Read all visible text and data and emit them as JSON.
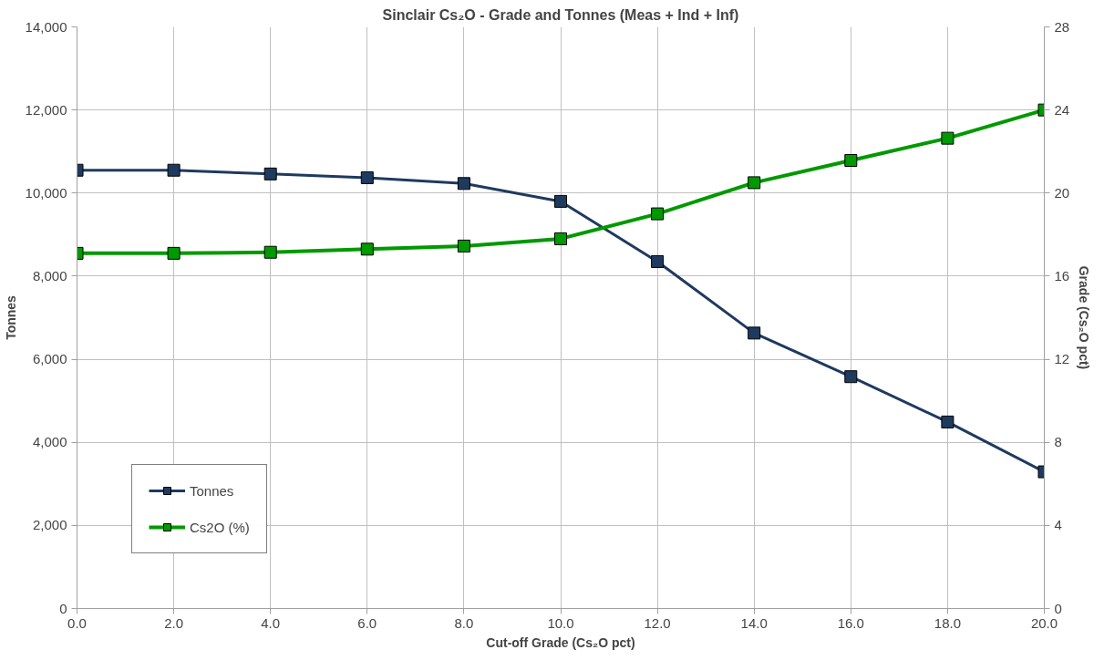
{
  "chart_data": {
    "type": "line",
    "title": "Sinclair Cs₂O - Grade and Tonnes (Meas + Ind + Inf)",
    "xlabel": "Cut-off Grade (Cs₂O pct)",
    "ylabel": "Tonnes",
    "y2label": "Grade (Cs₂O pct)",
    "x": [
      0,
      2,
      4,
      6,
      8,
      10,
      12,
      14,
      16,
      18,
      20
    ],
    "xlim": [
      0,
      20
    ],
    "xticks": [
      {
        "value": 0,
        "label": "0.0"
      },
      {
        "value": 2,
        "label": "2.0"
      },
      {
        "value": 4,
        "label": "4.0"
      },
      {
        "value": 6,
        "label": "6.0"
      },
      {
        "value": 8,
        "label": "8.0"
      },
      {
        "value": 10,
        "label": "10.0"
      },
      {
        "value": 12,
        "label": "12.0"
      },
      {
        "value": 14,
        "label": "14.0"
      },
      {
        "value": 16,
        "label": "16.0"
      },
      {
        "value": 18,
        "label": "18.0"
      },
      {
        "value": 20,
        "label": "20.0"
      }
    ],
    "ylim": [
      0,
      14000
    ],
    "yticks": [
      0,
      {
        "value": 2000,
        "label": "2,000"
      },
      {
        "value": 4000,
        "label": "4,000"
      },
      {
        "value": 6000,
        "label": "6,000"
      },
      {
        "value": 8000,
        "label": "8,000"
      },
      {
        "value": 10000,
        "label": "10,000"
      },
      {
        "value": 12000,
        "label": "12,000"
      },
      {
        "value": 14000,
        "label": "14,000"
      }
    ],
    "y2lim": [
      0,
      28
    ],
    "y2ticks": [
      0,
      4,
      8,
      12,
      16,
      20,
      24,
      28
    ],
    "series": [
      {
        "name": "Tonnes",
        "color": "#1f3a5f",
        "values": [
          10550,
          10550,
          10460,
          10370,
          10230,
          9800,
          8350,
          6630,
          5580,
          4490,
          3290
        ]
      },
      {
        "name": "Cs2O (%)",
        "color": "#009900",
        "axis": "y2",
        "values": [
          17.1,
          17.1,
          17.15,
          17.3,
          17.45,
          17.8,
          19.0,
          20.5,
          21.57,
          22.64,
          24.0
        ]
      }
    ],
    "grid": true,
    "legend": "bottom left",
    "marker": "square",
    "line_style": "solid"
  }
}
